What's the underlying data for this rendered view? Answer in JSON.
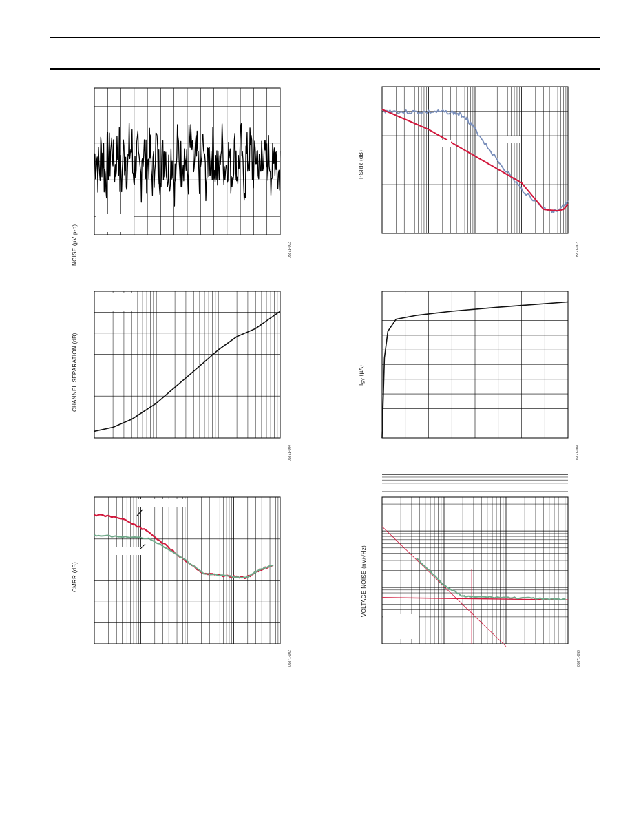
{
  "charts": [
    {
      "id": "noise",
      "ylabel": "NOISE (µV p-p)",
      "figid": "05871-003",
      "type": "line",
      "yscale": "linear",
      "xscale": "linear",
      "grid": {
        "v": 14,
        "h": 8,
        "minor_x": 10
      }
    },
    {
      "id": "channel-separation",
      "ylabel": "CHANNEL SEPARATION (dB)",
      "figid": "05871-004",
      "type": "line",
      "xscale": "log",
      "decades": 3,
      "grid": {
        "h": 7
      }
    },
    {
      "id": "cmrr",
      "ylabel": "CMRR (dB)",
      "figid": "05871-002",
      "type": "line",
      "xscale": "log",
      "decades": 4,
      "grid": {
        "h": 7
      }
    },
    {
      "id": "psrr",
      "ylabel": "PSRR (dB)",
      "figid": "05871-003",
      "type": "line",
      "xscale": "log",
      "decades": 4,
      "grid": {
        "h": 6
      }
    },
    {
      "id": "isy",
      "ylabel": "I<sub>SY</sub> (µA)",
      "ylabel_text": "ISY (µA)",
      "figid": "05871-004",
      "type": "line",
      "xscale": "linear",
      "grid": {
        "v": 8,
        "h": 10
      }
    },
    {
      "id": "voltage-noise",
      "ylabel": "VOLTAGE NOISE (nV/√Hz)",
      "figid": "05871-059",
      "type": "line",
      "xscale": "log",
      "yscale": "log",
      "decades": 3,
      "ydecades": 2
    }
  ],
  "chart_data": [
    {
      "type": "line",
      "series": [
        {
          "values": [
            0.3,
            -0.5,
            0.6,
            -0.8,
            0.2,
            1.0,
            -0.4,
            0.7,
            -1.1,
            0.5,
            -0.2,
            0.9,
            -0.6,
            0.3,
            -1.0,
            0.8,
            -0.3,
            0.4,
            -0.9,
            1.2,
            -0.5,
            0.1,
            0.7,
            -0.7,
            0.4,
            -1.2,
            0.9,
            -0.1,
            0.5,
            -0.8,
            1.0,
            -0.4,
            0.2,
            -0.6,
            0.8,
            -1.0,
            0.3,
            0.6,
            -0.2,
            -0.9,
            1.1,
            -0.3,
            0.4,
            -0.7,
            0.6,
            -0.5,
            0.9,
            -1.1,
            0.2,
            0.7,
            -0.4,
            0.5,
            -0.8,
            1.0,
            -0.2,
            0.3,
            -0.6,
            0.8,
            -0.9,
            0.4
          ]
        }
      ]
    },
    {
      "type": "line",
      "series": [
        {
          "values": [
            [
              10,
              5
            ],
            [
              20,
              8
            ],
            [
              40,
              14
            ],
            [
              100,
              26
            ],
            [
              200,
              38
            ],
            [
              400,
              50
            ],
            [
              1000,
              66
            ],
            [
              2000,
              76
            ],
            [
              4000,
              82
            ],
            [
              10000,
              95
            ]
          ]
        }
      ]
    },
    {
      "type": "line",
      "series": [
        {
          "values": [
            [
              10,
              88
            ],
            [
              30,
              86
            ],
            [
              100,
              76
            ],
            [
              300,
              62
            ],
            [
              1000,
              48
            ],
            [
              3000,
              46
            ],
            [
              6000,
              45
            ],
            [
              10000,
              50
            ],
            [
              20000,
              54
            ]
          ]
        },
        {
          "values": [
            [
              10,
              74
            ],
            [
              30,
              73
            ],
            [
              100,
              72
            ],
            [
              300,
              62
            ],
            [
              1000,
              48
            ],
            [
              3000,
              46
            ],
            [
              6000,
              45
            ],
            [
              10000,
              50
            ],
            [
              20000,
              54
            ]
          ]
        }
      ]
    },
    {
      "type": "line",
      "series": [
        {
          "values": [
            [
              10,
              92
            ],
            [
              30,
              91
            ],
            [
              100,
              91
            ],
            [
              300,
              91
            ],
            [
              600,
              88
            ],
            [
              1000,
              78
            ],
            [
              3000,
              55
            ],
            [
              10000,
              33
            ],
            [
              30000,
              19
            ],
            [
              60000,
              16
            ],
            [
              100000,
              23
            ]
          ]
        },
        {
          "values": [
            [
              10,
              93
            ],
            [
              100,
              78
            ],
            [
              1000,
              58
            ],
            [
              10000,
              38
            ],
            [
              30000,
              18
            ],
            [
              60000,
              17
            ],
            [
              80000,
              18
            ],
            [
              100000,
              22
            ]
          ]
        }
      ]
    },
    {
      "type": "line",
      "series": [
        {
          "values": [
            [
              0,
              0
            ],
            [
              0.1,
              60
            ],
            [
              0.25,
              80
            ],
            [
              0.6,
              89
            ],
            [
              1.5,
              92
            ],
            [
              3,
              95
            ],
            [
              5,
              98
            ],
            [
              8,
              102
            ]
          ]
        }
      ]
    },
    {
      "type": "line",
      "series": [
        {
          "values": [
            [
              1,
              900
            ],
            [
              3,
              400
            ],
            [
              10,
              110
            ],
            [
              20,
              70
            ],
            [
              30,
              68
            ],
            [
              100,
              66
            ],
            [
              300,
              64
            ],
            [
              1000,
              60
            ]
          ]
        },
        {
          "values": [
            [
              1,
              66
            ],
            [
              1000,
              62
            ]
          ]
        }
      ]
    }
  ]
}
